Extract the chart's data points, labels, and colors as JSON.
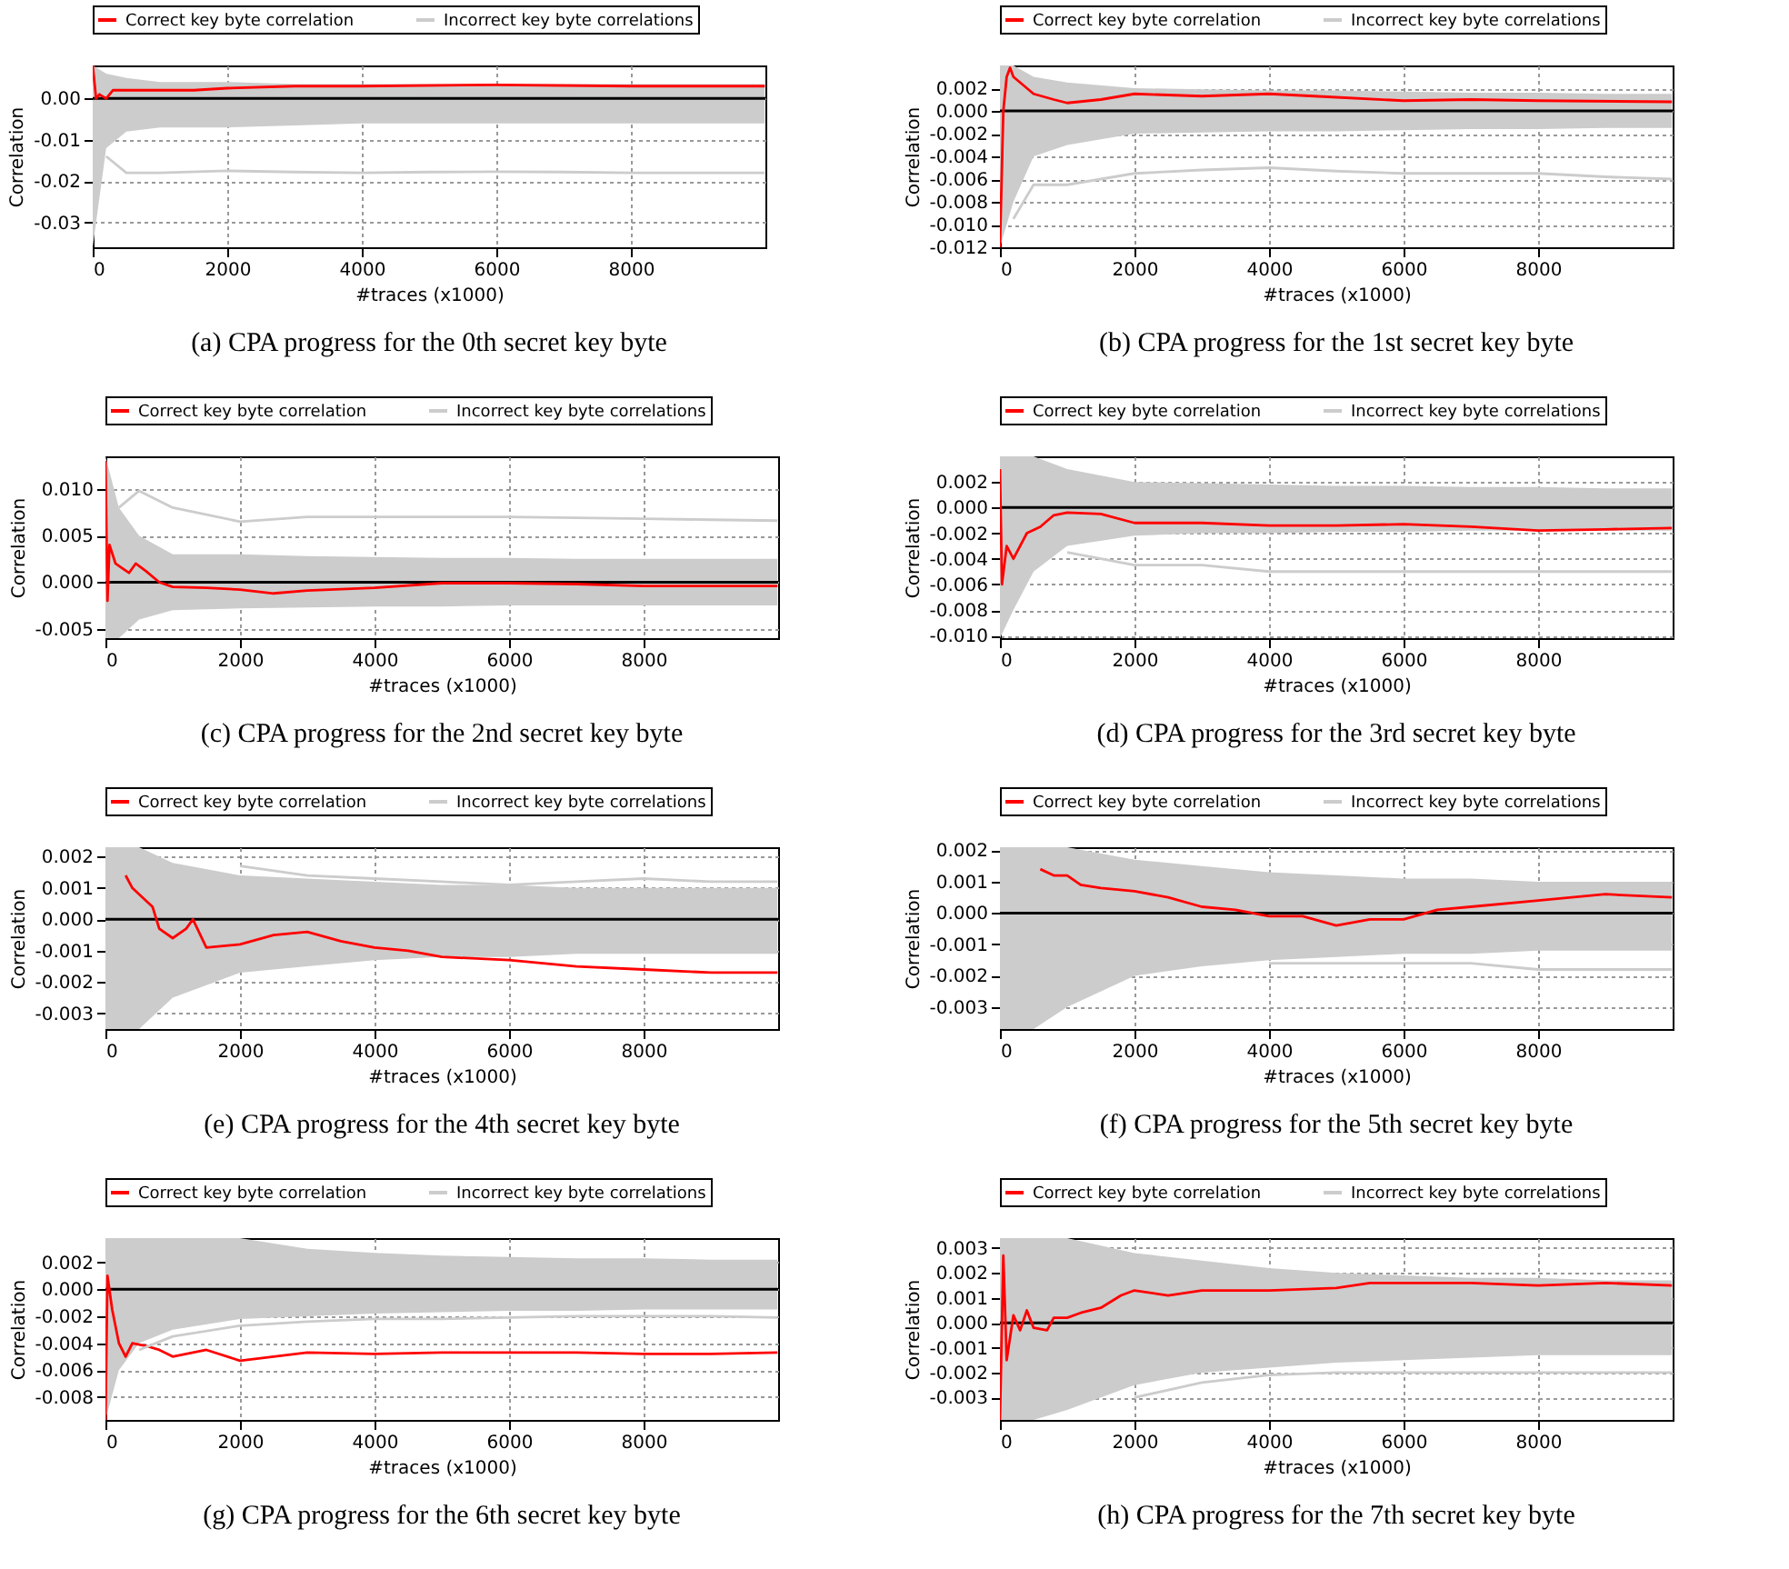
{
  "chart_data": [
    {
      "type": "line",
      "title": "(a) CPA progress for the 0th secret key byte",
      "xlabel": "#traces (x1000)",
      "ylabel": "Correlation",
      "xlim": [
        0,
        10000
      ],
      "xticks": [
        0,
        2000,
        4000,
        6000,
        8000
      ],
      "ylim": [
        -0.036,
        0.008
      ],
      "yticks": [
        {
          "value": 0,
          "label": "0.00"
        },
        {
          "value": -0.01,
          "label": "-0.01"
        },
        {
          "value": -0.02,
          "label": "-0.02"
        },
        {
          "value": -0.03,
          "label": "-0.03"
        }
      ],
      "grid": true,
      "legend": "top",
      "ref_lines": [
        {
          "axis": "y",
          "value": 0,
          "color": "#000000"
        }
      ],
      "series": [
        {
          "name": "Correct key byte correlation",
          "type": "line",
          "color": "#ff0000",
          "x": [
            0,
            50,
            100,
            200,
            300,
            600,
            1000,
            1500,
            2000,
            3000,
            4000,
            6000,
            8000,
            9990
          ],
          "values": [
            0.008,
            0.0,
            0.001,
            0.0,
            0.002,
            0.002,
            0.002,
            0.002,
            0.0025,
            0.003,
            0.003,
            0.0033,
            0.003,
            0.003
          ]
        },
        {
          "name": "Incorrect key byte correlations",
          "type": "line",
          "color": "#cccccc",
          "x": [
            0,
            200,
            500,
            1000,
            2000,
            3000,
            4000,
            5000,
            6000,
            7000,
            8000,
            9000,
            9990
          ],
          "values": [
            null,
            -0.014,
            -0.018,
            -0.018,
            -0.0175,
            -0.0178,
            -0.018,
            -0.0178,
            -0.0177,
            -0.0178,
            -0.018,
            -0.018,
            -0.018
          ],
          "lower": [
            -0.036,
            -0.012,
            -0.008,
            -0.007,
            -0.007,
            -0.0065,
            -0.006,
            -0.006,
            -0.006,
            -0.006,
            -0.006,
            -0.006,
            -0.006
          ],
          "upper": [
            0.008,
            0.006,
            0.005,
            0.004,
            0.004,
            0.0035,
            0.0035,
            0.0035,
            0.0035,
            0.0035,
            0.0035,
            0.0035,
            0.0035
          ]
        }
      ]
    },
    {
      "type": "line",
      "title": "(b) CPA progress for the 1st secret key byte",
      "xlabel": "#traces (x1000)",
      "ylabel": "Correlation",
      "xlim": [
        0,
        10000
      ],
      "xticks": [
        0,
        2000,
        4000,
        6000,
        8000
      ],
      "ylim": [
        -0.012,
        0.004
      ],
      "yticks": [
        {
          "value": 0.002,
          "label": "0.002"
        },
        {
          "value": 0,
          "label": "0.000"
        },
        {
          "value": -0.002,
          "label": "-0.002"
        },
        {
          "value": -0.004,
          "label": "-0.004"
        },
        {
          "value": -0.006,
          "label": "-0.006"
        },
        {
          "value": -0.008,
          "label": "-0.008"
        },
        {
          "value": -0.01,
          "label": "-0.010"
        },
        {
          "value": -0.012,
          "label": "-0.012"
        }
      ],
      "grid": true,
      "legend": "top",
      "ref_lines": [
        {
          "axis": "y",
          "value": 0,
          "color": "#000000"
        }
      ],
      "series": [
        {
          "name": "Correct key byte correlation",
          "type": "line",
          "color": "#ff0000",
          "x": [
            0,
            50,
            100,
            150,
            200,
            300,
            500,
            800,
            1000,
            1500,
            2000,
            3000,
            4000,
            5000,
            6000,
            7000,
            8000,
            9990
          ],
          "values": [
            -0.012,
            0.0,
            0.003,
            0.0038,
            0.003,
            0.0025,
            0.0015,
            0.001,
            0.0007,
            0.001,
            0.0015,
            0.0013,
            0.0015,
            0.0012,
            0.0009,
            0.001,
            0.0009,
            0.0008
          ]
        },
        {
          "name": "Incorrect key byte correlations",
          "type": "line",
          "color": "#cccccc",
          "x": [
            0,
            200,
            500,
            1000,
            2000,
            3000,
            4000,
            5000,
            6000,
            7000,
            8000,
            9000,
            9990
          ],
          "values": [
            null,
            -0.0095,
            -0.0065,
            -0.0065,
            -0.0055,
            -0.0052,
            -0.005,
            -0.0053,
            -0.0055,
            -0.0055,
            -0.0055,
            -0.0058,
            -0.006
          ],
          "lower": [
            -0.012,
            -0.008,
            -0.004,
            -0.003,
            -0.002,
            -0.0019,
            -0.0018,
            -0.0018,
            -0.0017,
            -0.0016,
            -0.0016,
            -0.0015,
            -0.0015
          ],
          "upper": [
            0.004,
            0.004,
            0.003,
            0.0025,
            0.002,
            0.0019,
            0.0018,
            0.0018,
            0.0017,
            0.0016,
            0.0016,
            0.0015,
            0.0015
          ]
        }
      ]
    },
    {
      "type": "line",
      "title": "(c) CPA progress for the 2nd secret key byte",
      "xlabel": "#traces (x1000)",
      "ylabel": "Correlation",
      "xlim": [
        0,
        10000
      ],
      "xticks": [
        0,
        2000,
        4000,
        6000,
        8000
      ],
      "ylim": [
        -0.006,
        0.0135
      ],
      "yticks": [
        {
          "value": 0.01,
          "label": "0.010"
        },
        {
          "value": 0.005,
          "label": "0.005"
        },
        {
          "value": 0,
          "label": "0.000"
        },
        {
          "value": -0.005,
          "label": "-0.005"
        }
      ],
      "grid": true,
      "legend": "top",
      "ref_lines": [
        {
          "axis": "y",
          "value": 0,
          "color": "#000000"
        }
      ],
      "series": [
        {
          "name": "Correct key byte correlation",
          "type": "line",
          "color": "#ff0000",
          "x": [
            0,
            30,
            60,
            150,
            250,
            350,
            450,
            600,
            800,
            1000,
            1500,
            2000,
            2500,
            3000,
            4000,
            5000,
            6000,
            7000,
            8000,
            9990
          ],
          "values": [
            0.013,
            -0.002,
            0.004,
            0.002,
            0.0015,
            0.001,
            0.002,
            0.0012,
            0.0,
            -0.0005,
            -0.0006,
            -0.0008,
            -0.0012,
            -0.0009,
            -0.0006,
            -0.0001,
            -0.0001,
            -0.0002,
            -0.0004,
            -0.0004
          ]
        },
        {
          "name": "Incorrect key byte correlations",
          "type": "line",
          "color": "#cccccc",
          "x": [
            0,
            200,
            500,
            1000,
            2000,
            3000,
            4000,
            5000,
            6000,
            7000,
            8000,
            9000,
            9990
          ],
          "values": [
            null,
            0.008,
            0.0098,
            0.008,
            0.0065,
            0.007,
            0.007,
            0.007,
            0.007,
            0.0069,
            0.0068,
            0.0067,
            0.0066
          ],
          "lower": [
            -0.006,
            -0.006,
            -0.004,
            -0.003,
            -0.0028,
            -0.0027,
            -0.0026,
            -0.0026,
            -0.0025,
            -0.0025,
            -0.0025,
            -0.0025,
            -0.0025
          ],
          "upper": [
            0.0135,
            0.008,
            0.005,
            0.003,
            0.003,
            0.0028,
            0.0027,
            0.0026,
            0.0026,
            0.0025,
            0.0025,
            0.0025,
            0.0025
          ]
        }
      ]
    },
    {
      "type": "line",
      "title": "(d) CPA progress for the 3rd secret key byte",
      "xlabel": "#traces (x1000)",
      "ylabel": "Correlation",
      "xlim": [
        0,
        10000
      ],
      "xticks": [
        0,
        2000,
        4000,
        6000,
        8000
      ],
      "ylim": [
        -0.0102,
        0.004
      ],
      "yticks": [
        {
          "value": 0.002,
          "label": "0.002"
        },
        {
          "value": 0,
          "label": "0.000"
        },
        {
          "value": -0.002,
          "label": "-0.002"
        },
        {
          "value": -0.004,
          "label": "-0.004"
        },
        {
          "value": -0.006,
          "label": "-0.006"
        },
        {
          "value": -0.008,
          "label": "-0.008"
        },
        {
          "value": -0.01,
          "label": "-0.010"
        }
      ],
      "grid": true,
      "legend": "top",
      "ref_lines": [
        {
          "axis": "y",
          "value": 0,
          "color": "#000000"
        }
      ],
      "series": [
        {
          "name": "Correct key byte correlation",
          "type": "line",
          "color": "#ff0000",
          "x": [
            0,
            30,
            100,
            200,
            300,
            400,
            600,
            800,
            1000,
            1500,
            2000,
            3000,
            4000,
            5000,
            6000,
            7000,
            8000,
            9000,
            9990
          ],
          "values": [
            0.003,
            -0.006,
            -0.003,
            -0.004,
            -0.003,
            -0.002,
            -0.0015,
            -0.0006,
            -0.0004,
            -0.0005,
            -0.0012,
            -0.0012,
            -0.0014,
            -0.0014,
            -0.0013,
            -0.0015,
            -0.0018,
            -0.0017,
            -0.0016
          ]
        },
        {
          "name": "Incorrect key byte correlations",
          "type": "line",
          "color": "#cccccc",
          "x": [
            0,
            200,
            500,
            1000,
            2000,
            3000,
            4000,
            5000,
            6000,
            7000,
            8000,
            9000,
            9990
          ],
          "values": [
            null,
            null,
            null,
            -0.0035,
            -0.0045,
            -0.0045,
            -0.005,
            -0.005,
            -0.005,
            -0.005,
            -0.005,
            -0.005,
            -0.005
          ],
          "lower": [
            -0.0102,
            -0.008,
            -0.005,
            -0.003,
            -0.0022,
            -0.002,
            -0.002,
            -0.0019,
            -0.0019,
            -0.0018,
            -0.0018,
            -0.0018,
            -0.0018
          ],
          "upper": [
            0.004,
            0.004,
            0.004,
            0.003,
            0.002,
            0.0019,
            0.0018,
            0.0017,
            0.0017,
            0.0016,
            0.0016,
            0.0015,
            0.0015
          ]
        }
      ]
    },
    {
      "type": "line",
      "title": "(e) CPA progress for the 4th secret key byte",
      "xlabel": "#traces (x1000)",
      "ylabel": "Correlation",
      "xlim": [
        0,
        10000
      ],
      "xticks": [
        0,
        2000,
        4000,
        6000,
        8000
      ],
      "ylim": [
        -0.0035,
        0.0023
      ],
      "yticks": [
        {
          "value": 0.002,
          "label": "0.002"
        },
        {
          "value": 0.001,
          "label": "0.001"
        },
        {
          "value": 0,
          "label": "0.000"
        },
        {
          "value": -0.001,
          "label": "-0.001"
        },
        {
          "value": -0.002,
          "label": "-0.002"
        },
        {
          "value": -0.003,
          "label": "-0.003"
        }
      ],
      "grid": true,
      "legend": "top",
      "ref_lines": [
        {
          "axis": "y",
          "value": 0,
          "color": "#000000"
        }
      ],
      "series": [
        {
          "name": "Correct key byte correlation",
          "type": "line",
          "color": "#ff0000",
          "x": [
            300,
            400,
            500,
            700,
            800,
            1000,
            1200,
            1300,
            1500,
            2000,
            2500,
            3000,
            3500,
            4000,
            4500,
            5000,
            6000,
            7000,
            8000,
            9000,
            9990
          ],
          "values": [
            0.0014,
            0.001,
            0.0008,
            0.0004,
            -0.0003,
            -0.0006,
            -0.0003,
            0.0,
            -0.0009,
            -0.0008,
            -0.0005,
            -0.0004,
            -0.0007,
            -0.0009,
            -0.001,
            -0.0012,
            -0.0013,
            -0.0015,
            -0.0016,
            -0.0017,
            -0.0017
          ]
        },
        {
          "name": "Incorrect key byte correlations",
          "type": "line",
          "color": "#cccccc",
          "x": [
            0,
            200,
            500,
            1000,
            2000,
            3000,
            4000,
            5000,
            6000,
            7000,
            8000,
            9000,
            9990
          ],
          "values": [
            null,
            null,
            null,
            null,
            0.0017,
            0.0014,
            0.0013,
            0.0012,
            0.0011,
            0.0012,
            0.0013,
            0.0012,
            0.0012
          ],
          "lower": [
            -0.0035,
            -0.0035,
            -0.0035,
            -0.0025,
            -0.0017,
            -0.0015,
            -0.0013,
            -0.0012,
            -0.0012,
            -0.0011,
            -0.0011,
            -0.0011,
            -0.0011
          ],
          "upper": [
            0.0023,
            0.0023,
            0.0023,
            0.0018,
            0.0014,
            0.0013,
            0.0012,
            0.0011,
            0.0011,
            0.001,
            0.001,
            0.001,
            0.001
          ]
        }
      ]
    },
    {
      "type": "line",
      "title": "(f) CPA progress for the 5th secret key byte",
      "xlabel": "#traces (x1000)",
      "ylabel": "Correlation",
      "xlim": [
        0,
        10000
      ],
      "xticks": [
        0,
        2000,
        4000,
        6000,
        8000
      ],
      "ylim": [
        -0.0037,
        0.0021
      ],
      "yticks": [
        {
          "value": 0.002,
          "label": "0.002"
        },
        {
          "value": 0.001,
          "label": "0.001"
        },
        {
          "value": 0,
          "label": "0.000"
        },
        {
          "value": -0.001,
          "label": "-0.001"
        },
        {
          "value": -0.002,
          "label": "-0.002"
        },
        {
          "value": -0.003,
          "label": "-0.003"
        }
      ],
      "grid": true,
      "legend": "top",
      "ref_lines": [
        {
          "axis": "y",
          "value": 0,
          "color": "#000000"
        }
      ],
      "series": [
        {
          "name": "Correct key byte correlation",
          "type": "line",
          "color": "#ff0000",
          "x": [
            600,
            800,
            1000,
            1200,
            1500,
            2000,
            2500,
            3000,
            3500,
            4000,
            4500,
            5000,
            5500,
            6000,
            6500,
            7000,
            8000,
            9000,
            9990
          ],
          "values": [
            0.0014,
            0.0012,
            0.0012,
            0.0009,
            0.0008,
            0.0007,
            0.0005,
            0.0002,
            0.0001,
            -0.0001,
            -0.0001,
            -0.0004,
            -0.0002,
            -0.0002,
            0.0001,
            0.0002,
            0.0004,
            0.0006,
            0.0005
          ]
        },
        {
          "name": "Incorrect key byte correlations",
          "type": "line",
          "color": "#cccccc",
          "x": [
            0,
            200,
            500,
            1000,
            2000,
            3000,
            4000,
            5000,
            6000,
            7000,
            8000,
            9000,
            9990
          ],
          "values": [
            null,
            null,
            null,
            null,
            null,
            null,
            -0.0016,
            -0.0016,
            -0.0016,
            -0.0016,
            -0.0018,
            -0.0018,
            -0.0018
          ],
          "lower": [
            -0.0037,
            -0.0037,
            -0.0037,
            -0.003,
            -0.002,
            -0.0017,
            -0.0015,
            -0.0014,
            -0.0013,
            -0.0013,
            -0.0012,
            -0.0012,
            -0.0012
          ],
          "upper": [
            0.0021,
            0.0021,
            0.0021,
            0.0021,
            0.0017,
            0.0015,
            0.0013,
            0.0012,
            0.0011,
            0.0011,
            0.001,
            0.001,
            0.001
          ]
        }
      ]
    },
    {
      "type": "line",
      "title": "(g) CPA progress for the 6th secret key byte",
      "xlabel": "#traces (x1000)",
      "ylabel": "Correlation",
      "xlim": [
        0,
        10000
      ],
      "xticks": [
        0,
        2000,
        4000,
        6000,
        8000
      ],
      "ylim": [
        -0.0097,
        0.0038
      ],
      "yticks": [
        {
          "value": 0.002,
          "label": "0.002"
        },
        {
          "value": 0,
          "label": "0.000"
        },
        {
          "value": -0.002,
          "label": "-0.002"
        },
        {
          "value": -0.004,
          "label": "-0.004"
        },
        {
          "value": -0.006,
          "label": "-0.006"
        },
        {
          "value": -0.008,
          "label": "-0.008"
        }
      ],
      "grid": true,
      "legend": "top",
      "ref_lines": [
        {
          "axis": "y",
          "value": 0,
          "color": "#000000"
        }
      ],
      "series": [
        {
          "name": "Correct key byte correlation",
          "type": "line",
          "color": "#ff0000",
          "x": [
            0,
            30,
            100,
            200,
            300,
            400,
            600,
            800,
            1000,
            1500,
            2000,
            3000,
            4000,
            5000,
            6000,
            7000,
            8000,
            9000,
            9990
          ],
          "values": [
            -0.0097,
            0.001,
            -0.0015,
            -0.004,
            -0.005,
            -0.004,
            -0.0042,
            -0.0045,
            -0.005,
            -0.0045,
            -0.0053,
            -0.0047,
            -0.0048,
            -0.0047,
            -0.0047,
            -0.0047,
            -0.0048,
            -0.0048,
            -0.0047
          ]
        },
        {
          "name": "Incorrect key byte correlations",
          "type": "line",
          "color": "#cccccc",
          "x": [
            0,
            200,
            500,
            1000,
            2000,
            3000,
            4000,
            5000,
            6000,
            7000,
            8000,
            9000,
            9990
          ],
          "values": [
            null,
            null,
            -0.0045,
            -0.0035,
            -0.0027,
            -0.0024,
            -0.0022,
            -0.0022,
            -0.0021,
            -0.002,
            -0.002,
            -0.002,
            -0.0021
          ],
          "lower": [
            -0.0097,
            -0.006,
            -0.004,
            -0.003,
            -0.0022,
            -0.002,
            -0.0018,
            -0.0017,
            -0.0016,
            -0.0016,
            -0.0015,
            -0.0015,
            -0.0015
          ],
          "upper": [
            0.0038,
            0.0038,
            0.0038,
            0.0038,
            0.0038,
            0.003,
            0.0027,
            0.0025,
            0.0024,
            0.0023,
            0.0023,
            0.0022,
            0.0022
          ]
        }
      ]
    },
    {
      "type": "line",
      "title": "(h) CPA progress for the 7th secret key byte",
      "xlabel": "#traces (x1000)",
      "ylabel": "Correlation",
      "xlim": [
        0,
        10000
      ],
      "xticks": [
        0,
        2000,
        4000,
        6000,
        8000
      ],
      "ylim": [
        -0.0039,
        0.0034
      ],
      "yticks": [
        {
          "value": 0.003,
          "label": "0.003"
        },
        {
          "value": 0.002,
          "label": "0.002"
        },
        {
          "value": 0.001,
          "label": "0.001"
        },
        {
          "value": 0,
          "label": "0.000"
        },
        {
          "value": -0.001,
          "label": "-0.001"
        },
        {
          "value": -0.002,
          "label": "-0.002"
        },
        {
          "value": -0.003,
          "label": "-0.003"
        }
      ],
      "grid": true,
      "legend": "top",
      "ref_lines": [
        {
          "axis": "y",
          "value": 0,
          "color": "#000000"
        }
      ],
      "series": [
        {
          "name": "Correct key byte correlation",
          "type": "line",
          "color": "#ff0000",
          "x": [
            0,
            50,
            100,
            200,
            300,
            400,
            500,
            700,
            800,
            1000,
            1200,
            1500,
            1800,
            2000,
            2500,
            3000,
            4000,
            5000,
            5500,
            6000,
            7000,
            8000,
            9000,
            9990
          ],
          "values": [
            -0.0039,
            0.0027,
            -0.0015,
            0.0003,
            -0.0003,
            0.0005,
            -0.0002,
            -0.0003,
            0.0002,
            0.0002,
            0.0004,
            0.0006,
            0.0011,
            0.0013,
            0.0011,
            0.0013,
            0.0013,
            0.0014,
            0.0016,
            0.0016,
            0.0016,
            0.0015,
            0.0016,
            0.0015
          ]
        },
        {
          "name": "Incorrect key byte correlations",
          "type": "line",
          "color": "#cccccc",
          "x": [
            0,
            200,
            500,
            1000,
            2000,
            3000,
            4000,
            5000,
            6000,
            7000,
            8000,
            9000,
            9990
          ],
          "values": [
            null,
            null,
            null,
            null,
            -0.003,
            -0.0024,
            -0.0021,
            -0.002,
            -0.002,
            -0.002,
            -0.002,
            -0.002,
            -0.002
          ],
          "lower": [
            -0.0039,
            -0.0039,
            -0.0039,
            -0.0035,
            -0.0025,
            -0.002,
            -0.0018,
            -0.0016,
            -0.0015,
            -0.0014,
            -0.0013,
            -0.0013,
            -0.0013
          ],
          "upper": [
            0.0034,
            0.0034,
            0.0034,
            0.0034,
            0.0028,
            0.0025,
            0.0022,
            0.002,
            0.0019,
            0.0018,
            0.0018,
            0.0017,
            0.0017
          ]
        }
      ]
    }
  ]
}
